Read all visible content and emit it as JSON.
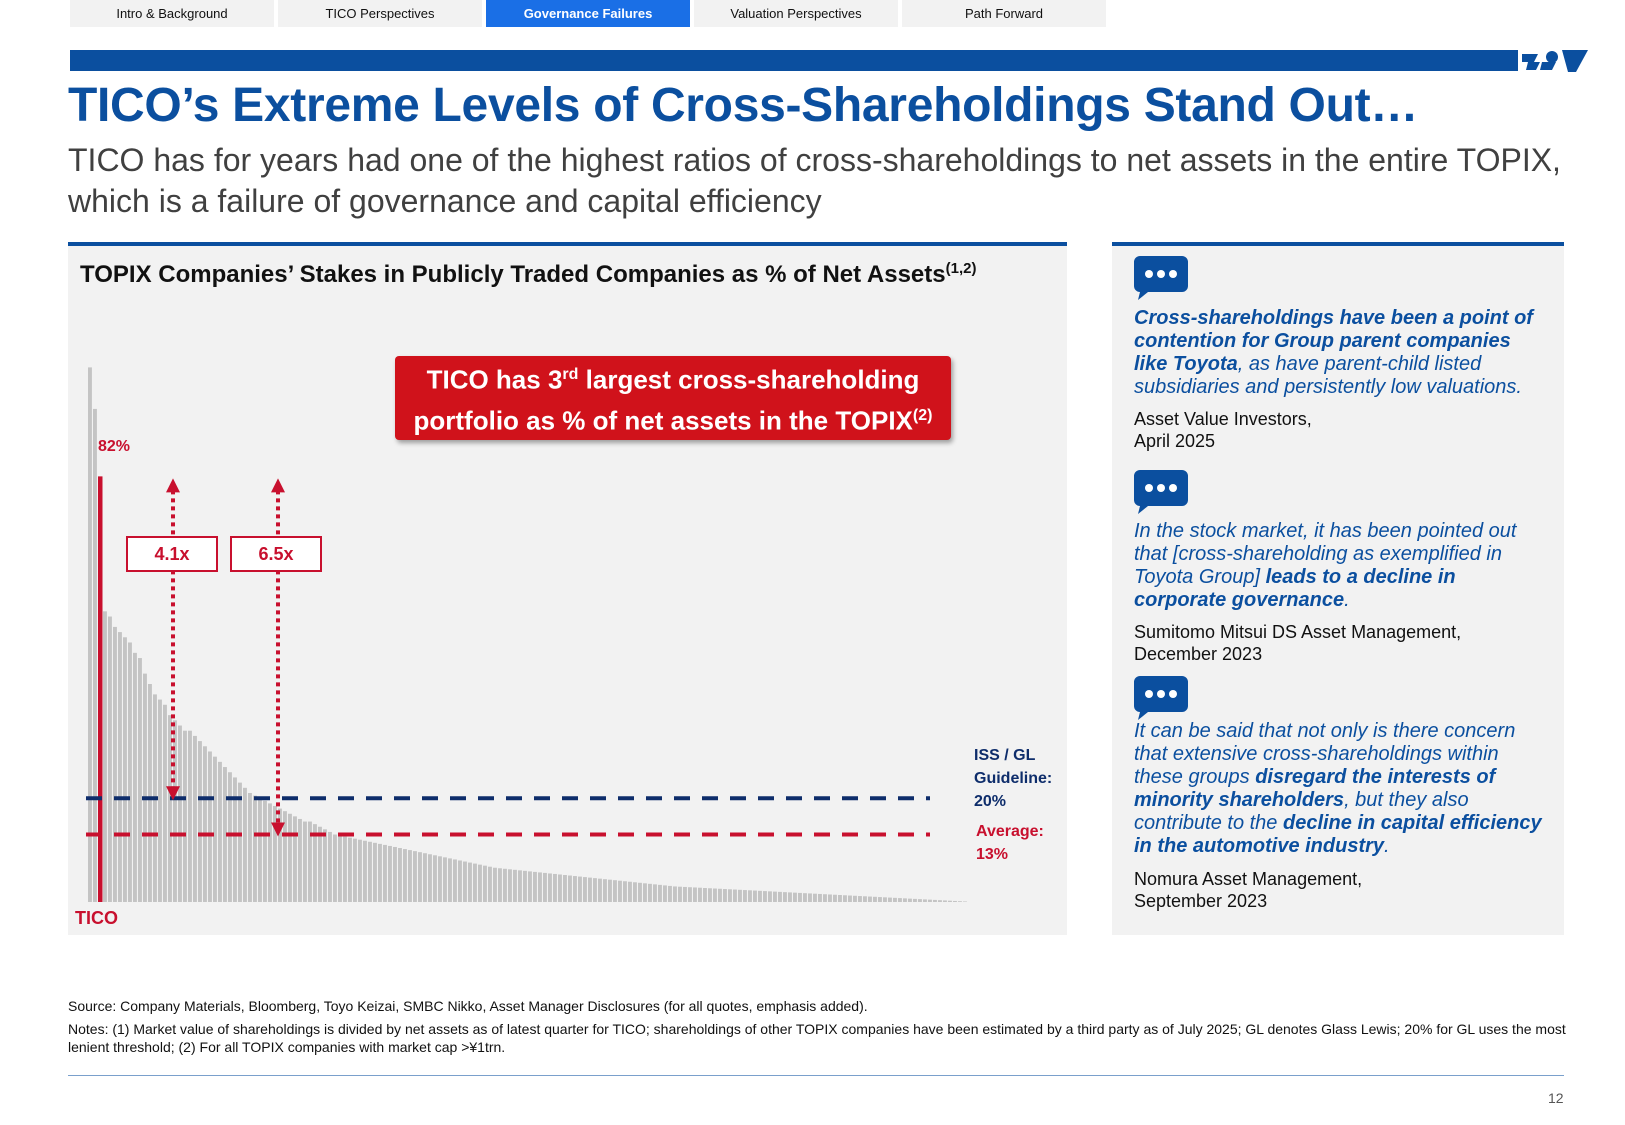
{
  "nav": {
    "tabs": [
      {
        "label": "Intro & Background",
        "active": false
      },
      {
        "label": "TICO Perspectives",
        "active": false
      },
      {
        "label": "Governance Failures",
        "active": true
      },
      {
        "label": "Valuation Perspectives",
        "active": false
      },
      {
        "label": "Path Forward",
        "active": false
      }
    ]
  },
  "colors": {
    "brand_blue": "#0b4f9f",
    "accent_red": "#c8102e",
    "bar_gray": "#c4c4c4",
    "nav_active": "#1a6fe6"
  },
  "title": "TICO’s Extreme Levels of Cross-Shareholdings Stand Out…",
  "subtitle": "TICO has for years had one of the highest ratios of cross-shareholdings to net assets in the entire TOPIX, which is a failure of governance and capital efficiency",
  "chart_data": {
    "type": "bar",
    "title": "TOPIX Companies’ Stakes in Publicly Traded Companies as % of Net Assets",
    "title_superscript": "(1,2)",
    "xlabel": "",
    "ylabel": "",
    "ylim": [
      0,
      105
    ],
    "highlighted_company": "TICO",
    "highlighted_value": 82,
    "highlighted_rank": 3,
    "highlighted_label": "82%",
    "category_label": "TICO",
    "values": [
      103,
      95,
      82,
      56,
      55,
      53,
      52,
      51,
      50,
      48,
      47,
      44,
      42,
      40,
      39,
      38,
      36,
      35,
      34,
      33,
      33,
      32,
      31,
      30,
      29,
      28,
      27,
      26,
      25,
      24,
      23,
      22,
      21,
      20.5,
      20,
      19.5,
      19,
      18.5,
      18,
      17.5,
      17,
      16.5,
      16,
      15.5,
      15.5,
      15,
      14.5,
      14,
      13.5,
      13,
      12.8,
      12.6,
      12.4,
      12.2,
      12,
      11.8,
      11.6,
      11.4,
      11.2,
      11,
      10.8,
      10.6,
      10.4,
      10.2,
      10,
      9.8,
      9.6,
      9.4,
      9.2,
      9,
      8.8,
      8.6,
      8.4,
      8.2,
      8,
      7.8,
      7.6,
      7.4,
      7.2,
      7,
      6.8,
      6.6,
      6.5,
      6.4,
      6.3,
      6.2,
      6.1,
      6,
      5.9,
      5.8,
      5.7,
      5.6,
      5.5,
      5.4,
      5.3,
      5.2,
      5.1,
      5,
      4.9,
      4.8,
      4.7,
      4.6,
      4.5,
      4.4,
      4.3,
      4.2,
      4.1,
      4,
      3.9,
      3.8,
      3.7,
      3.6,
      3.5,
      3.4,
      3.3,
      3.2,
      3.1,
      3,
      2.95,
      2.9,
      2.85,
      2.8,
      2.75,
      2.7,
      2.65,
      2.6,
      2.55,
      2.5,
      2.45,
      2.4,
      2.35,
      2.3,
      2.25,
      2.2,
      2.15,
      2.1,
      2.05,
      2,
      1.95,
      1.9,
      1.85,
      1.8,
      1.75,
      1.7,
      1.65,
      1.6,
      1.55,
      1.5,
      1.45,
      1.4,
      1.35,
      1.3,
      1.25,
      1.2,
      1.15,
      1.1,
      1.05,
      1,
      0.95,
      0.9,
      0.85,
      0.8,
      0.75,
      0.7,
      0.65,
      0.6,
      0.55,
      0.5,
      0.45,
      0.4,
      0.35,
      0.3,
      0.25,
      0.2,
      0.15,
      0.1
    ],
    "reference_lines": [
      {
        "name": "ISS / GL Guideline",
        "value": 20,
        "label_lines": [
          "ISS / GL",
          "Guideline:",
          "20%"
        ],
        "color": "#0e2d6b"
      },
      {
        "name": "Average",
        "value": 13,
        "label_lines": [
          "Average:",
          "13%"
        ],
        "color": "#c8102e"
      }
    ],
    "multiples": [
      {
        "label": "4.1x",
        "from_value": 20,
        "to_value": 82
      },
      {
        "label": "6.5x",
        "from_value": 13,
        "to_value": 82
      }
    ],
    "callout": {
      "line1_pre": "TICO has 3",
      "line1_sup": "rd",
      "line1_post": " largest cross-shareholding",
      "line2": "portfolio as % of net assets in the TOPIX",
      "line2_sup": "(2)"
    }
  },
  "quotes": [
    {
      "segments": [
        {
          "text": "Cross-shareholdings have been a point of contention for Group parent companies like Toyota",
          "bold": true
        },
        {
          "text": ", as have parent-child listed subsidiaries and persistently low valuations.",
          "bold": false
        }
      ],
      "attribution_line1": "Asset Value Investors,",
      "attribution_line2": "April 2025"
    },
    {
      "segments": [
        {
          "text": "In the stock market, it has been pointed out that [cross-shareholding as exemplified in Toyota Group] ",
          "bold": false
        },
        {
          "text": "leads to a decline in corporate governance",
          "bold": true
        },
        {
          "text": ".",
          "bold": false
        }
      ],
      "attribution_line1": "Sumitomo Mitsui DS Asset Management,",
      "attribution_line2": "December 2023"
    },
    {
      "segments": [
        {
          "text": "It can be said that not only is there concern that extensive cross-shareholdings within these groups ",
          "bold": false
        },
        {
          "text": "disregard the interests of minority shareholders",
          "bold": true
        },
        {
          "text": ", but they also contribute to the ",
          "bold": false
        },
        {
          "text": "decline in capital efficiency in the automotive industry",
          "bold": true
        },
        {
          "text": ".",
          "bold": false
        }
      ],
      "attribution_line1": "Nomura Asset Management,",
      "attribution_line2": "September 2023"
    }
  ],
  "footer": {
    "source": "Source: Company Materials, Bloomberg, Toyo Keizai, SMBC Nikko, Asset Manager Disclosures (for all quotes, emphasis added).",
    "notes": "Notes: (1) Market value of shareholdings is divided by net assets as of latest quarter for TICO; shareholdings of other TOPIX companies have been estimated by a third party as of July 2025; GL denotes Glass Lewis; 20% for GL uses the most lenient threshold; (2) For all TOPIX companies with market cap >¥1trn.",
    "page_number": "12"
  }
}
